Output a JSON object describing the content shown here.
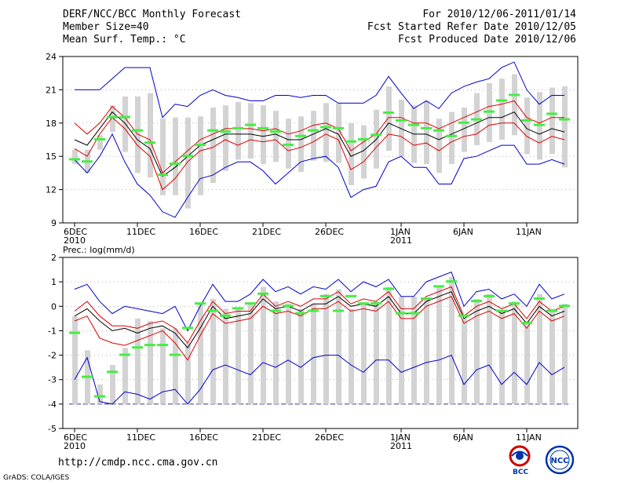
{
  "header": {
    "title": "DERF/NCC/BCC Monthly Forecast",
    "member_size": "Member Size=40",
    "variable": "Mean Surf. Temp.: °C",
    "period": "For 2010/12/06-2011/01/14",
    "started": "Fcst Started Refer Date 2010/12/05",
    "produced": "Fcst Produced Date 2010/12/06"
  },
  "footer": {
    "url": "http://cmdp.ncc.cma.gov.cn",
    "grads": "GrADS: COLA/IGES",
    "logo_bcc": "BCC",
    "logo_ncc": "NCC"
  },
  "colors": {
    "envelope": "#0000cc",
    "band": "#dd0000",
    "mean": "#000000",
    "box": "#d3d3d3",
    "median": "#44ee44",
    "grid": "#888888"
  },
  "chart_data": [
    {
      "type": "box",
      "title": "Mean Surf. Temp.: °C",
      "ylim": [
        9,
        24
      ],
      "yticks": [
        9,
        12,
        15,
        18,
        21,
        24
      ],
      "days": 39,
      "x_ticks": [
        {
          "day": 0,
          "label": "6DEC",
          "sub": "2010"
        },
        {
          "day": 5,
          "label": "11DEC"
        },
        {
          "day": 10,
          "label": "16DEC"
        },
        {
          "day": 15,
          "label": "21DEC"
        },
        {
          "day": 20,
          "label": "26DEC"
        },
        {
          "day": 26,
          "label": "1JAN",
          "sub": "2011"
        },
        {
          "day": 31,
          "label": "6JAN"
        },
        {
          "day": 36,
          "label": "11JAN"
        }
      ],
      "series": [
        {
          "name": "max",
          "role": "envelope",
          "values": [
            21,
            21,
            21,
            22,
            23,
            23,
            23,
            18.5,
            19.7,
            19.5,
            20.5,
            21,
            20.5,
            20.3,
            20,
            20,
            20.5,
            20.5,
            20.3,
            20.5,
            20.5,
            19.8,
            19.8,
            19.8,
            20.5,
            22.2,
            20.7,
            19.3,
            20,
            19.3,
            20.7,
            21.3,
            21.7,
            22,
            23,
            23.5,
            21,
            19.7,
            20.5,
            20.5
          ]
        },
        {
          "name": "q75",
          "role": "band",
          "values": [
            18,
            17,
            18,
            19.5,
            18.5,
            17,
            16.5,
            13.5,
            14.5,
            15.5,
            16.5,
            17,
            17.5,
            17.5,
            17.5,
            17.3,
            17.5,
            17,
            17.3,
            17.8,
            18,
            17.5,
            15.5,
            16.3,
            17,
            18.5,
            18.5,
            18,
            18,
            17.5,
            18,
            18.5,
            19,
            19.5,
            19.7,
            20,
            18.5,
            18,
            18.5,
            18.5
          ]
        },
        {
          "name": "mean",
          "role": "mean",
          "values": [
            16.5,
            16,
            17.5,
            19,
            18,
            16.5,
            15.7,
            13.2,
            14,
            15,
            16,
            16.5,
            17,
            17,
            17,
            16.8,
            17,
            16.5,
            16.5,
            17,
            17.5,
            17,
            15,
            15.5,
            16.5,
            18,
            17.5,
            17,
            17,
            16.5,
            17,
            17.5,
            18,
            18.5,
            18.5,
            19,
            17.5,
            17,
            17.5,
            17.2
          ]
        },
        {
          "name": "q25",
          "role": "band",
          "values": [
            15.7,
            15,
            17,
            18.5,
            17.5,
            16,
            15,
            12,
            13,
            14.5,
            15.5,
            15.8,
            16.5,
            16,
            16.5,
            16.3,
            16.5,
            15.5,
            15.8,
            16.3,
            17,
            16.5,
            13.8,
            14.5,
            15.8,
            17,
            16.8,
            16,
            16.2,
            15.5,
            16.3,
            16.8,
            17,
            17.8,
            18,
            18,
            16.8,
            16.2,
            16.8,
            16.5
          ]
        },
        {
          "name": "min",
          "role": "envelope",
          "values": [
            14.7,
            13.5,
            15,
            17,
            14.5,
            12.5,
            11.5,
            10,
            9.5,
            11.3,
            13,
            13.3,
            14,
            14.5,
            14.5,
            13.7,
            12.5,
            13.5,
            14.5,
            14.8,
            15,
            14,
            11.3,
            12,
            12.3,
            14.5,
            15,
            14,
            14,
            12.5,
            12.5,
            14.8,
            15,
            15.5,
            16,
            16,
            14.3,
            14.3,
            14.7,
            14.3
          ]
        }
      ],
      "box_lo": [
        14.3,
        13.5,
        15.6,
        17.2,
        15.4,
        13.5,
        13.1,
        11.5,
        11.5,
        10.3,
        11.5,
        12.6,
        13.7,
        14.7,
        14.8,
        14.3,
        14.5,
        13.9,
        13.6,
        14.6,
        14.5,
        14.4,
        12.4,
        13.0,
        13.9,
        15.5,
        15.0,
        14.4,
        14.3,
        13.5,
        14.3,
        15.4,
        16.0,
        16.3,
        16.5,
        16.9,
        15.2,
        14.7,
        15.2,
        14.0
      ],
      "box_hi": [
        15.6,
        15.6,
        16.9,
        19.6,
        20.4,
        20.4,
        20.7,
        18.4,
        18.5,
        18.5,
        18.6,
        19.4,
        19.6,
        19.9,
        19.8,
        19.6,
        19.1,
        18.4,
        18.6,
        19.1,
        19.8,
        19.8,
        18.0,
        17.8,
        19.2,
        21.3,
        20.1,
        19.6,
        20.0,
        18.4,
        19.0,
        19.4,
        20.7,
        21.6,
        22.0,
        22.4,
        20.3,
        20.8,
        21.2,
        21.3
      ],
      "median": [
        14.7,
        14.5,
        16.5,
        18.5,
        18.5,
        17.3,
        16.2,
        13.3,
        14.3,
        15.0,
        16.0,
        17.3,
        17.2,
        17.5,
        17.8,
        17.5,
        17.2,
        16.0,
        16.8,
        17.3,
        17.6,
        17.5,
        16.3,
        16.5,
        16.9,
        18.9,
        18.2,
        17.8,
        17.5,
        17.3,
        16.8,
        18.0,
        18.3,
        19.0,
        20.0,
        20.5,
        18.2,
        17.8,
        18.8,
        18.3
      ]
    },
    {
      "type": "box",
      "title": "Prec.: log(mm/d)",
      "ylim": [
        -5,
        2
      ],
      "yticks": [
        -5,
        -4,
        -3,
        -2,
        -1,
        0,
        1,
        2
      ],
      "baseline": -4,
      "days": 39,
      "x_ticks": [
        {
          "day": 0,
          "label": "6DEC",
          "sub": "2010"
        },
        {
          "day": 5,
          "label": "11DEC"
        },
        {
          "day": 10,
          "label": "16DEC"
        },
        {
          "day": 15,
          "label": "21DEC"
        },
        {
          "day": 20,
          "label": "26DEC"
        },
        {
          "day": 26,
          "label": "1JAN",
          "sub": "2011"
        },
        {
          "day": 31,
          "label": "6JAN"
        },
        {
          "day": 36,
          "label": "11JAN"
        }
      ],
      "series": [
        {
          "name": "max",
          "role": "envelope",
          "values": [
            0.7,
            0.9,
            0.2,
            -0.3,
            0,
            -0.1,
            -0.2,
            -0.3,
            0,
            -1,
            0,
            0.9,
            0.2,
            0.2,
            0.5,
            1.1,
            0.6,
            0.8,
            0.5,
            0.8,
            0.7,
            1.1,
            0.6,
            1,
            0.8,
            1.1,
            0.4,
            0.4,
            1,
            1.2,
            1.4,
            0,
            0.6,
            0.7,
            0.3,
            0.5,
            0,
            0.9,
            0.3,
            0.5
          ]
        },
        {
          "name": "q75",
          "role": "band",
          "values": [
            -0.2,
            0.2,
            -0.4,
            -0.8,
            -0.8,
            -0.9,
            -0.7,
            -0.6,
            -0.9,
            -1.5,
            -0.6,
            0.2,
            -0.3,
            -0.2,
            -0.2,
            0.5,
            0,
            0.2,
            0,
            0.3,
            0.3,
            0.6,
            0.1,
            0.3,
            0.2,
            0.6,
            -0.1,
            -0.1,
            0.4,
            0.6,
            0.8,
            -0.4,
            0,
            0.2,
            -0.1,
            0.1,
            -0.5,
            0.2,
            -0.2,
            0
          ]
        },
        {
          "name": "mean",
          "role": "mean",
          "values": [
            -0.4,
            -0.1,
            -0.6,
            -1,
            -0.9,
            -1.1,
            -0.9,
            -0.8,
            -1.1,
            -1.7,
            -0.9,
            0,
            -0.5,
            -0.4,
            -0.3,
            0.3,
            -0.1,
            0,
            -0.2,
            0.1,
            0.1,
            0.4,
            0,
            0.1,
            0,
            0.4,
            -0.3,
            -0.3,
            0.2,
            0.4,
            0.6,
            -0.5,
            -0.2,
            0,
            -0.3,
            -0.1,
            -0.7,
            0,
            -0.4,
            -0.2
          ]
        },
        {
          "name": "q25",
          "role": "band",
          "values": [
            -0.6,
            -0.4,
            -1.3,
            -1.5,
            -1.6,
            -1.4,
            -1.2,
            -1,
            -1.5,
            -2.2,
            -1.2,
            -0.3,
            -0.7,
            -0.6,
            -0.5,
            0,
            -0.3,
            -0.2,
            -0.4,
            -0.1,
            -0.1,
            0.2,
            -0.2,
            -0.1,
            -0.2,
            0.2,
            -0.5,
            -0.5,
            0,
            0.2,
            0.4,
            -0.7,
            -0.4,
            -0.2,
            -0.5,
            -0.3,
            -0.9,
            -0.2,
            -0.6,
            -0.4
          ]
        },
        {
          "name": "min",
          "role": "envelope",
          "values": [
            -3,
            -2.1,
            -3.9,
            -4,
            -3.5,
            -3.6,
            -3.8,
            -3.5,
            -3.4,
            -4,
            -3.4,
            -2.6,
            -2.4,
            -2.6,
            -2.8,
            -2.3,
            -2.5,
            -2.2,
            -2.5,
            -2.1,
            -2,
            -2,
            -2.4,
            -2.7,
            -2.2,
            -2.2,
            -2.7,
            -2.5,
            -2.3,
            -2.2,
            -2,
            -3.2,
            -2.6,
            -2.4,
            -3.2,
            -2.7,
            -3.2,
            -2.3,
            -2.8,
            -2.5
          ]
        }
      ],
      "box_lo": [
        -4,
        -4,
        -4,
        -4,
        -4,
        -4,
        -4,
        -4,
        -4,
        -4,
        -4,
        -4,
        -4,
        -4,
        -4,
        -4,
        -4,
        -4,
        -4,
        -4,
        -4,
        -4,
        -4,
        -4,
        -4,
        -4,
        -4,
        -4,
        -4,
        -4,
        -4,
        -4,
        -4,
        -4,
        -4,
        -4,
        -4,
        -4,
        -4,
        -4
      ],
      "box_hi": [
        -0.4,
        -1.8,
        -3.2,
        -2.4,
        -1.7,
        -0.5,
        -0.6,
        -0.9,
        -0.9,
        -1.5,
        0.1,
        0.3,
        -0.1,
        -0.1,
        0.1,
        0.8,
        0.2,
        0.1,
        -0.1,
        0.1,
        0.5,
        0.7,
        -0.1,
        0.1,
        0.2,
        0.8,
        0.4,
        0.4,
        0.3,
        0.8,
        1.2,
        -0.5,
        0.3,
        0.5,
        -0.2,
        0.2,
        -0.6,
        0.5,
        -0.1,
        0.1
      ],
      "median": [
        -1.1,
        -2.9,
        -3.7,
        -2.7,
        -2.0,
        -1.7,
        -1.6,
        -1.6,
        -2.0,
        -0.9,
        0.1,
        -0.2,
        -0.4,
        -0.1,
        0.1,
        0.5,
        -0.2,
        0.0,
        -0.3,
        -0.2,
        0.4,
        -0.2,
        0.4,
        0.1,
        0.1,
        0.7,
        -0.3,
        -0.3,
        0.3,
        0.8,
        1.0,
        -0.4,
        0.2,
        0.4,
        -0.2,
        0.1,
        -0.7,
        0.3,
        -0.2,
        0.0
      ]
    }
  ]
}
